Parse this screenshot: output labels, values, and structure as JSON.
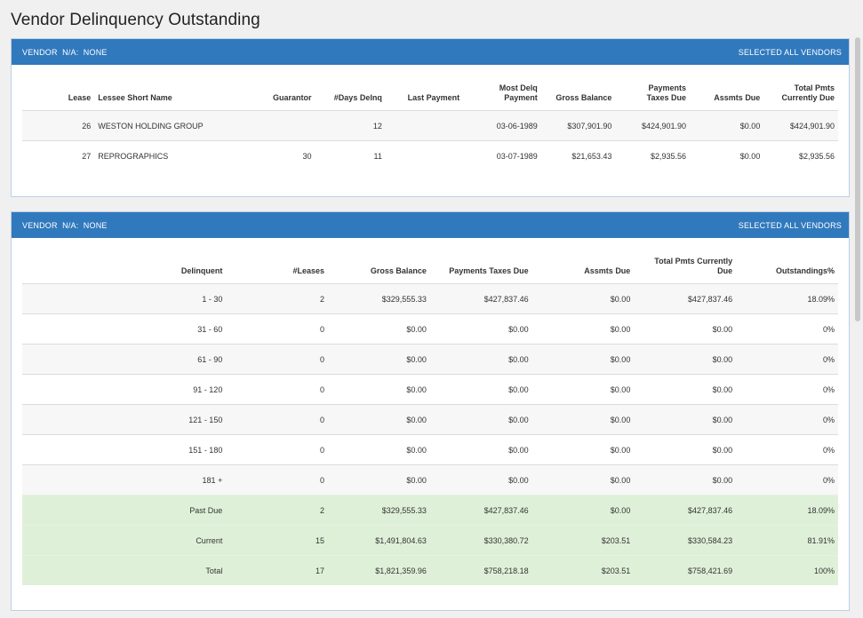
{
  "page": {
    "title": "Vendor Delinquency Outstanding"
  },
  "panel1": {
    "header_left": "VENDOR  N/A:  NONE",
    "header_right": "SELECTED ALL VENDORS",
    "columns": [
      "Lease",
      "Lessee Short Name",
      "Guarantor",
      "#Days Delnq",
      "Last Payment",
      "Most Delq Payment",
      "Gross Balance",
      "Payments Taxes Due",
      "Assmts Due",
      "Total Pmts Currently Due"
    ],
    "rows": [
      [
        "26",
        "WESTON HOLDING GROUP",
        "",
        "12",
        "",
        "03-06-1989",
        "$307,901.90",
        "$424,901.90",
        "$0.00",
        "$424,901.90"
      ],
      [
        "27",
        "REPROGRAPHICS",
        "30",
        "11",
        "",
        "03-07-1989",
        "$21,653.43",
        "$2,935.56",
        "$0.00",
        "$2,935.56"
      ]
    ]
  },
  "panel2": {
    "header_left": "VENDOR  N/A:  NONE",
    "header_right": "SELECTED ALL VENDORS",
    "columns": [
      "Delinquent",
      "#Leases",
      "Gross Balance",
      "Payments Taxes Due",
      "Assmts Due",
      "Total Pmts Currently Due",
      "Outstandings%"
    ],
    "rows": [
      [
        "1 - 30",
        "2",
        "$329,555.33",
        "$427,837.46",
        "$0.00",
        "$427,837.46",
        "18.09%"
      ],
      [
        "31 - 60",
        "0",
        "$0.00",
        "$0.00",
        "$0.00",
        "$0.00",
        "0%"
      ],
      [
        "61 - 90",
        "0",
        "$0.00",
        "$0.00",
        "$0.00",
        "$0.00",
        "0%"
      ],
      [
        "91 - 120",
        "0",
        "$0.00",
        "$0.00",
        "$0.00",
        "$0.00",
        "0%"
      ],
      [
        "121 - 150",
        "0",
        "$0.00",
        "$0.00",
        "$0.00",
        "$0.00",
        "0%"
      ],
      [
        "151 - 180",
        "0",
        "$0.00",
        "$0.00",
        "$0.00",
        "$0.00",
        "0%"
      ],
      [
        "181 +",
        "0",
        "$0.00",
        "$0.00",
        "$0.00",
        "$0.00",
        "0%"
      ]
    ],
    "summary_rows": [
      [
        "Past Due",
        "2",
        "$329,555.33",
        "$427,837.46",
        "$0.00",
        "$427,837.46",
        "18.09%"
      ],
      [
        "Current",
        "15",
        "$1,491,804.63",
        "$330,380.72",
        "$203.51",
        "$330,584.23",
        "81.91%"
      ],
      [
        "Total",
        "17",
        "$1,821,359.96",
        "$758,218.18",
        "$203.51",
        "$758,421.69",
        "100%"
      ]
    ]
  }
}
